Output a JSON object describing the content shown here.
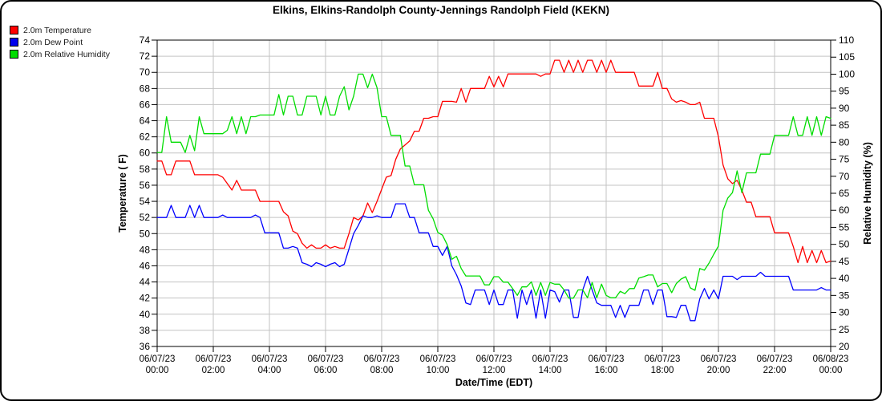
{
  "chart": {
    "title": "Elkins, Elkins-Randolph County-Jennings Randolph Field (KEKN)",
    "legend": [
      {
        "label": "2.0m Temperature",
        "color": "#ff0000"
      },
      {
        "label": "2.0m Dew Point",
        "color": "#0000ee"
      },
      {
        "label": "2.0m Relative Humidity",
        "color": "#00dd00"
      }
    ],
    "x_axis": {
      "label": "Date/Time (EDT)",
      "ticks": [
        {
          "date": "06/07/23",
          "time": "00:00"
        },
        {
          "date": "06/07/23",
          "time": "02:00"
        },
        {
          "date": "06/07/23",
          "time": "04:00"
        },
        {
          "date": "06/07/23",
          "time": "06:00"
        },
        {
          "date": "06/07/23",
          "time": "08:00"
        },
        {
          "date": "06/07/23",
          "time": "10:00"
        },
        {
          "date": "06/07/23",
          "time": "12:00"
        },
        {
          "date": "06/07/23",
          "time": "14:00"
        },
        {
          "date": "06/07/23",
          "time": "16:00"
        },
        {
          "date": "06/07/23",
          "time": "18:00"
        },
        {
          "date": "06/07/23",
          "time": "20:00"
        },
        {
          "date": "06/07/23",
          "time": "22:00"
        },
        {
          "date": "06/08/23",
          "time": "00:00"
        }
      ]
    },
    "y_left": {
      "label": "Temperature ( F)",
      "min": 36,
      "max": 74,
      "step": 2
    },
    "y_right": {
      "label": "Relative Humidity (%)",
      "min": 20,
      "max": 110,
      "step": 5
    }
  },
  "chart_data": {
    "type": "line",
    "title": "Elkins, Elkins-Randolph County-Jennings Randolph Field (KEKN)",
    "xlabel": "Date/Time (EDT)",
    "x_start": "06/07/23 00:00 EDT",
    "x_end": "06/08/23 00:00 EDT",
    "x_step_minutes": 10,
    "grid": true,
    "legend_position": "top-left",
    "ylabel_left": "Temperature ( F)",
    "ylim_left": [
      36,
      74
    ],
    "ylabel_right": "Relative Humidity (%)",
    "ylim_right": [
      20,
      110
    ],
    "series": [
      {
        "id": "temperature",
        "name": "2.0m Temperature",
        "color": "#ff0000",
        "axis": "left",
        "values": [
          59,
          59,
          57.3,
          57.3,
          59,
          59,
          59,
          59,
          57.3,
          57.3,
          57.3,
          57.3,
          57.3,
          57.3,
          57,
          56.2,
          55.4,
          56.6,
          55.4,
          55.4,
          55.4,
          55.4,
          54,
          54,
          54,
          54,
          54,
          52.7,
          52.2,
          50.3,
          50,
          48.8,
          48.2,
          48.6,
          48.2,
          48.2,
          48.6,
          48.2,
          48.4,
          48.2,
          48.2,
          50,
          52,
          51.7,
          52.2,
          53.8,
          52.6,
          54,
          55.5,
          57,
          57.2,
          59.2,
          60.5,
          61,
          61.5,
          62.7,
          62.7,
          64.3,
          64.3,
          64.5,
          64.5,
          66.4,
          66.4,
          66.4,
          66.3,
          68,
          66.3,
          68,
          68,
          68,
          68,
          69.5,
          68.2,
          69.5,
          68.2,
          69.8,
          69.8,
          69.8,
          69.8,
          69.8,
          69.8,
          69.8,
          69.5,
          69.8,
          69.8,
          71.5,
          71.5,
          70,
          71.5,
          70,
          71.5,
          70,
          71.5,
          71.5,
          70,
          71.5,
          70,
          71.5,
          70,
          70,
          70,
          70,
          70,
          68.3,
          68.3,
          68.3,
          68.3,
          70,
          68,
          68,
          66.7,
          66.3,
          66.5,
          66.3,
          66,
          66,
          66.3,
          64.3,
          64.3,
          64.3,
          62,
          58.5,
          56.8,
          56.2,
          56.6,
          55.4,
          53.9,
          53.9,
          52.1,
          52.1,
          52.1,
          52.1,
          50.1,
          50.1,
          50.1,
          50.1,
          48.4,
          46.4,
          48.4,
          46.4,
          47.9,
          46.4,
          47.9,
          46.4,
          46.6
        ]
      },
      {
        "id": "dew-point",
        "name": "2.0m Dew Point",
        "color": "#0000ff",
        "axis": "left",
        "values": [
          52,
          52,
          52,
          53.5,
          52,
          52,
          52,
          53.5,
          52,
          53.5,
          52,
          52,
          52,
          52,
          52.3,
          52,
          52,
          52,
          52,
          52,
          52,
          52.3,
          52,
          50.1,
          50.1,
          50.1,
          50.1,
          48.2,
          48.2,
          48.4,
          48.2,
          46.4,
          46.2,
          45.9,
          46.4,
          46.2,
          45.9,
          46.2,
          46.4,
          45.9,
          46.2,
          48.1,
          50,
          51,
          52.2,
          52,
          52,
          52.2,
          52,
          52,
          52,
          53.7,
          53.7,
          53.7,
          52,
          52,
          50.1,
          50.1,
          50.1,
          48.4,
          48.4,
          47.3,
          48.4,
          46,
          44.9,
          43.5,
          41.4,
          41.2,
          43,
          43,
          43,
          41.2,
          43,
          41.2,
          41.2,
          43,
          43,
          39.5,
          43,
          41.2,
          43,
          39.5,
          43,
          39.5,
          43,
          42.8,
          41.5,
          43,
          43,
          39.6,
          39.6,
          43,
          44.7,
          43,
          41.4,
          41.1,
          41.1,
          41.1,
          39.6,
          41.1,
          39.6,
          41.1,
          41.1,
          41.1,
          43,
          43,
          41.2,
          43,
          43,
          39.7,
          39.7,
          39.6,
          41.1,
          41.1,
          39.2,
          39.2,
          41.9,
          43.2,
          41.9,
          43,
          41.9,
          44.7,
          44.7,
          44.7,
          44.3,
          44.7,
          44.7,
          44.7,
          44.7,
          45.2,
          44.7,
          44.7,
          44.7,
          44.7,
          44.7,
          44.7,
          43,
          43,
          43,
          43,
          43,
          43,
          43.3,
          43,
          43
        ]
      },
      {
        "id": "relative-humidity",
        "name": "2.0m Relative Humidity",
        "color": "#00dd00",
        "axis": "right",
        "values": [
          77,
          77,
          87.5,
          80,
          80,
          80,
          77,
          82,
          77.5,
          87.5,
          82.5,
          82.5,
          82.5,
          82.5,
          82.5,
          83.5,
          87.5,
          82.5,
          87.5,
          82.5,
          87.5,
          87.5,
          88,
          88,
          88,
          88,
          94,
          88,
          93.5,
          93.5,
          88,
          88,
          93.5,
          93.5,
          93.5,
          88,
          93.5,
          88,
          88,
          93.5,
          96.3,
          89.5,
          93.5,
          100,
          100,
          96,
          100,
          96,
          87.5,
          87.5,
          82,
          82,
          82,
          73,
          73,
          67.5,
          67.5,
          67.5,
          60,
          57.5,
          53.5,
          52.7,
          49.9,
          45.6,
          46.5,
          42.9,
          40.7,
          40.7,
          40.7,
          40.7,
          38.1,
          38.1,
          40.5,
          40.5,
          38.9,
          38.9,
          37,
          35,
          37.5,
          37.5,
          39,
          35,
          38.8,
          35,
          38.8,
          38.3,
          38.3,
          36.6,
          34.2,
          34.2,
          36.6,
          36.6,
          34.3,
          38.8,
          34.3,
          38.3,
          35,
          34.3,
          34.3,
          36.2,
          35.5,
          37,
          37,
          40.1,
          40.5,
          41,
          41,
          37.5,
          38.5,
          38.5,
          35.8,
          38.5,
          39.8,
          40.5,
          37.2,
          36.5,
          42.9,
          42.4,
          44.5,
          47.1,
          49.5,
          60,
          63.6,
          65.2,
          71.6,
          65.2,
          71,
          71,
          71,
          76.5,
          76.5,
          76.5,
          82,
          82,
          82,
          82,
          87.5,
          82,
          82,
          87.5,
          82,
          87.5,
          82,
          87.5,
          87
        ]
      }
    ]
  }
}
